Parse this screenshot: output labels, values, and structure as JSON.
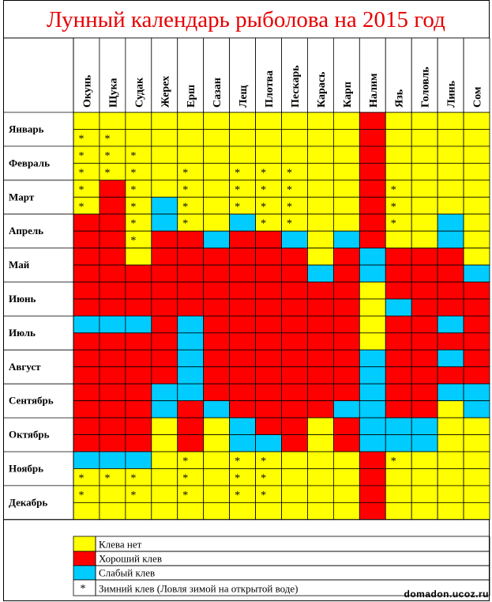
{
  "title": "Лунный календарь рыболова на 2015 год",
  "footer": "domadon.ucoz.ru",
  "colors": {
    "Y": "#ffff00",
    "R": "#ff0000",
    "B": "#00ccff"
  },
  "chart_data": {
    "type": "table",
    "columns": [
      "Окунь",
      "Щука",
      "Судак",
      "Жерех",
      "Ерш",
      "Сазан",
      "Лещ",
      "Плотва",
      "Пескарь",
      "Карась",
      "Карп",
      "Налим",
      "Язь",
      "Головль",
      "Линь",
      "Сом"
    ],
    "months": [
      "Январь",
      "Февраль",
      "Март",
      "Апрель",
      "Май",
      "Июнь",
      "Июль",
      "Август",
      "Сентябрь",
      "Октябрь",
      "Ноябрь",
      "Декабрь"
    ],
    "cell_codes": [
      "YYYYYYYYYYYRYYYY",
      "YYYYYYYYYYYRYYYY",
      "YYYYYYYYYYYRYYYY",
      "YYYYYYYYYYYRYYYY",
      "YRYYYYYYYYYRYYYY",
      "YRYBYYYYYYYRYYYY",
      "RRYBYYBYYYYRYYBY",
      "RRYRRBRRBYBRYYBY",
      "RRYRRRRRRYRBRRRY",
      "RRRRRRRRRBRBRRRB",
      "RRRRRRRRRRRYRRRR",
      "RRRRRRRRRRRYBRRR",
      "BBBRBRRRRRRYRRBR",
      "RRRRBRRRRRRYRRRR",
      "RRRRBRRRRRRBRRBR",
      "RRRRBRRRRRRBRRRR",
      "RRRBBRRRRRRBRRBB",
      "RRRBRBRRRRBBRRYB",
      "RRRYRYBRRYRBBBYY",
      "RRRYRYBBRYRBBBYY",
      "BBBYYYYYYYYRYYYY",
      "YYYYYYYYYYYRYYYY",
      "YYYYYYYYYYYRYYYY",
      "YYYYYYYYYYYRYYYY"
    ],
    "star_codes": [
      "................",
      "**..............",
      "***.............",
      "***.*.***.......",
      "*.*.*.***...*...",
      "*.*.*.***...*...",
      "..*.*..**...*...",
      "..*.............",
      "................",
      "................",
      "................",
      "................",
      "................",
      "................",
      "................",
      "................",
      "................",
      "................",
      "................",
      "................",
      "....*.**....*...",
      "***.*.**........",
      "*.*.*.**........",
      "................"
    ],
    "legend": [
      {
        "code": "Y",
        "symbol": "",
        "label": "Клева нет"
      },
      {
        "code": "R",
        "symbol": "",
        "label": "Хороший клев"
      },
      {
        "code": "B",
        "symbol": "",
        "label": "Слабый клев"
      },
      {
        "code": "W",
        "symbol": "*",
        "label": "Зимний клев (Ловля зимой на открытой воде)"
      }
    ]
  }
}
